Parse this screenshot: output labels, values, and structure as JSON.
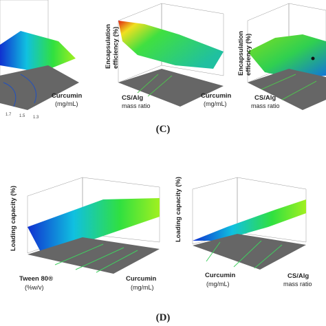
{
  "panels": [
    {
      "axis_labels": [
        "Curcumin",
        "(mg/mL)"
      ],
      "ticks": [
        "1.7",
        "1.5",
        "1.3"
      ]
    },
    {
      "y_label": [
        "Encapsulation",
        "efficiency (%)"
      ],
      "axis_labels": [
        "CS/Alg",
        "mass ratio",
        "Curcumin",
        "(mg/mL)"
      ]
    },
    {
      "y_label": [
        "Encapsulation",
        "efficiency (%)"
      ],
      "axis_labels": [
        "CS/Alg",
        "mass ratio"
      ]
    },
    {
      "y_label": [
        "Loading capacity (%)"
      ],
      "axis_labels": [
        "Tween 80®",
        "(%w/v)",
        "Curcumin",
        "(mg/mL)"
      ]
    },
    {
      "y_label": [
        "Loading capacity (%)"
      ],
      "axis_labels": [
        "Curcumin",
        "(mg/mL)",
        "CS/Alg",
        "mass ratio"
      ]
    }
  ],
  "figure_labels": [
    "(C)",
    "(D)"
  ]
}
